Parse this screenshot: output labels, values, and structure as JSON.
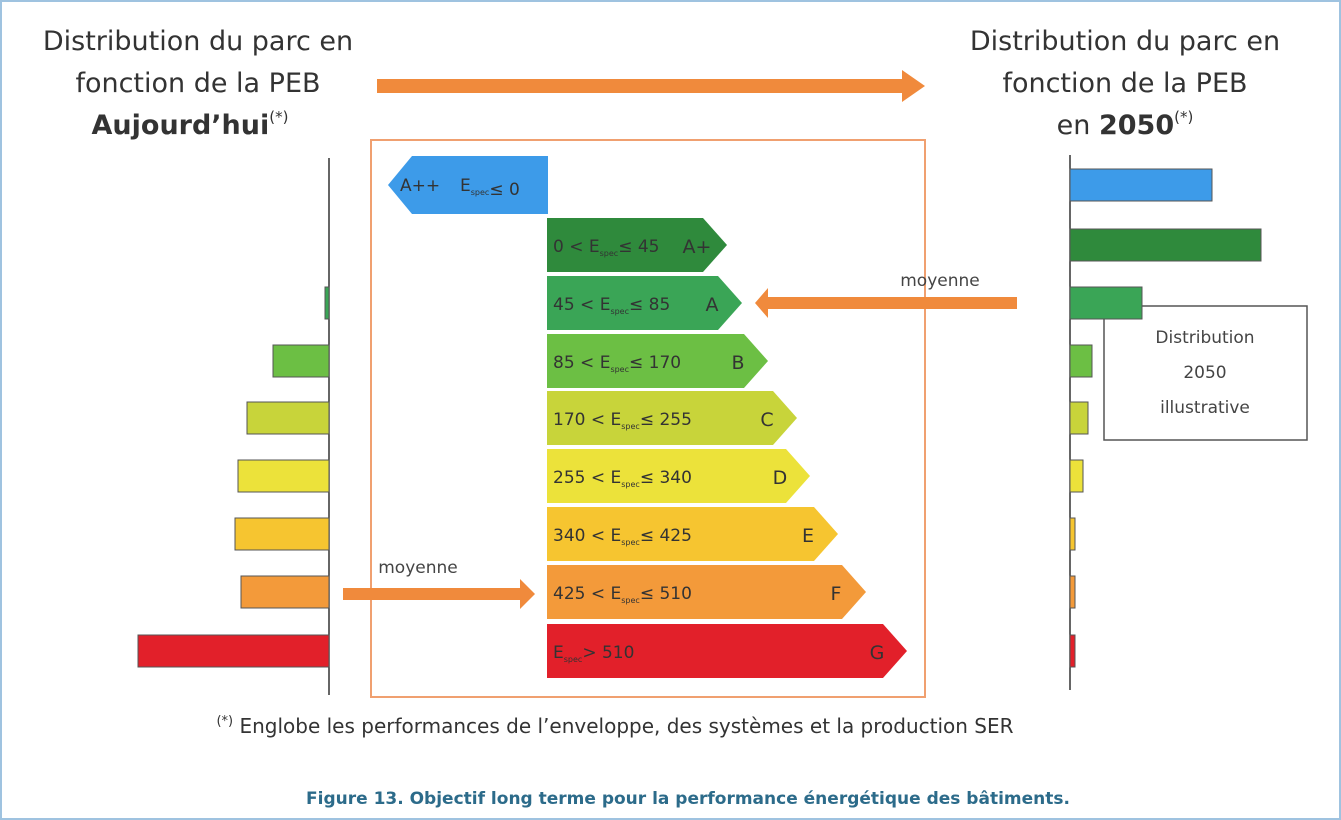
{
  "left_title": {
    "line1": "Distribution du parc en",
    "line2": "fonction de la PEB",
    "line3": "Aujourd’hui",
    "mark": "(*)"
  },
  "right_title": {
    "line1": "Distribution du parc en",
    "line2": "fonction de la PEB",
    "line3_prefix": "en ",
    "line3_bold": "2050",
    "mark": "(*)"
  },
  "energy_symbol": "E",
  "energy_sub": "spec",
  "classes": [
    {
      "class": "A++",
      "lower": null,
      "upper": "≤ 0",
      "color": "#3d9be9",
      "today": 0,
      "in_2050": 142
    },
    {
      "class": "A+",
      "lower": "0 <",
      "upper": "≤ 45",
      "color": "#2f8a3c",
      "today": 0,
      "in_2050": 191
    },
    {
      "class": "A",
      "lower": "45 <",
      "upper": "≤ 85",
      "color": "#3aa556",
      "today": 4,
      "in_2050": 72
    },
    {
      "class": "B",
      "lower": "85 <",
      "upper": "≤ 170",
      "color": "#6cbf44",
      "today": 56,
      "in_2050": 22
    },
    {
      "class": "C",
      "lower": "170 <",
      "upper": "≤ 255",
      "color": "#c8d43a",
      "today": 82,
      "in_2050": 18
    },
    {
      "class": "D",
      "lower": "255 <",
      "upper": "≤ 340",
      "color": "#ece23a",
      "today": 91,
      "in_2050": 13
    },
    {
      "class": "E",
      "lower": "340 <",
      "upper": "≤ 425",
      "color": "#f6c530",
      "today": 94,
      "in_2050": 5
    },
    {
      "class": "F",
      "lower": "425 <",
      "upper": "≤ 510",
      "color": "#f39a3a",
      "today": 88,
      "in_2050": 5
    },
    {
      "class": "G",
      "lower": null,
      "upper": "> 510",
      "color": "#e2202a",
      "today": 191,
      "in_2050": 5
    }
  ],
  "average_label_today": "moyenne",
  "average_label_2050": "moyenne",
  "note_box": {
    "line1": "Distribution",
    "line2": "2050",
    "line3": "illustrative"
  },
  "footnote": {
    "mark": "(*)",
    "text": " Englobe les performances de l’enveloppe, des systèmes et la production SER"
  },
  "caption": "Figure 13. Objectif long terme pour la performance énergétique des bâtiments."
}
